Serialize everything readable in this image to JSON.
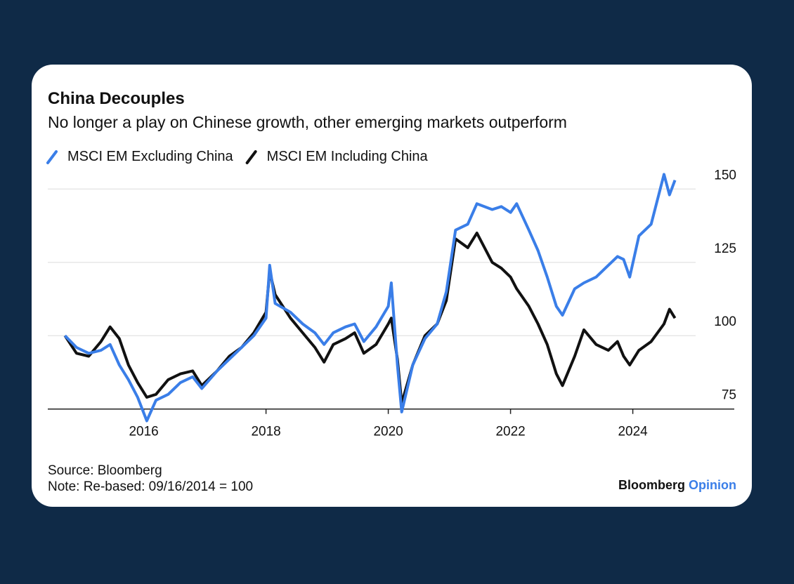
{
  "chart_data": {
    "type": "line",
    "title": "China Decouples",
    "subtitle": "No longer a play on Chinese growth, other emerging markets outperform",
    "x": [
      2014.71,
      2014.9,
      2015.1,
      2015.3,
      2015.45,
      2015.6,
      2015.75,
      2015.9,
      2016.05,
      2016.2,
      2016.4,
      2016.6,
      2016.8,
      2016.95,
      2017.2,
      2017.4,
      2017.6,
      2017.8,
      2018.0,
      2018.06,
      2018.15,
      2018.4,
      2018.6,
      2018.8,
      2018.95,
      2019.1,
      2019.3,
      2019.45,
      2019.6,
      2019.8,
      2020.0,
      2020.05,
      2020.15,
      2020.22,
      2020.4,
      2020.6,
      2020.8,
      2020.95,
      2021.1,
      2021.3,
      2021.45,
      2021.7,
      2021.85,
      2022.0,
      2022.1,
      2022.3,
      2022.45,
      2022.6,
      2022.75,
      2022.85,
      2023.05,
      2023.2,
      2023.4,
      2023.6,
      2023.75,
      2023.85,
      2023.95,
      2024.1,
      2024.3,
      2024.51,
      2024.6,
      2024.69
    ],
    "series": [
      {
        "name": "MSCI EM Excluding China",
        "color": "#3a7ee8",
        "values": [
          100,
          96,
          94,
          95,
          97,
          90,
          85,
          79,
          71,
          78,
          80,
          84,
          86,
          82,
          88,
          92,
          96,
          100,
          106,
          124,
          111,
          108,
          104,
          101,
          97,
          101,
          103,
          104,
          98,
          103,
          110,
          118,
          90,
          74,
          90,
          99,
          104,
          115,
          136,
          138,
          145,
          143,
          144,
          142,
          145,
          136,
          129,
          120,
          110,
          107,
          116,
          118,
          120,
          124,
          127,
          126,
          120,
          134,
          138,
          155,
          148,
          153
        ]
      },
      {
        "name": "MSCI EM Including China",
        "color": "#111111",
        "values": [
          100,
          94,
          93,
          98,
          103,
          99,
          90,
          84,
          79,
          80,
          85,
          87,
          88,
          83,
          88,
          93,
          96,
          101,
          108,
          122,
          114,
          106,
          101,
          96,
          91,
          97,
          99,
          101,
          94,
          97,
          104,
          106,
          92,
          77,
          90,
          100,
          104,
          112,
          133,
          130,
          135,
          125,
          123,
          120,
          116,
          110,
          104,
          97,
          87,
          83,
          93,
          102,
          97,
          95,
          98,
          93,
          90,
          95,
          98,
          104,
          109,
          106
        ]
      }
    ],
    "xlim": [
      2014.43,
      2025.66
    ],
    "xticks": [
      2016,
      2018,
      2020,
      2022,
      2024
    ],
    "ylim": [
      68,
      157
    ],
    "yticks": [
      75,
      100,
      125,
      150
    ],
    "grid": true,
    "source": "Source: Bloomberg",
    "note": "Note: Re-based: 09/16/2014 = 100",
    "brand": "Bloomberg",
    "brand_suffix": "Opinion",
    "brand_suffix_color": "#3a7ee8"
  }
}
